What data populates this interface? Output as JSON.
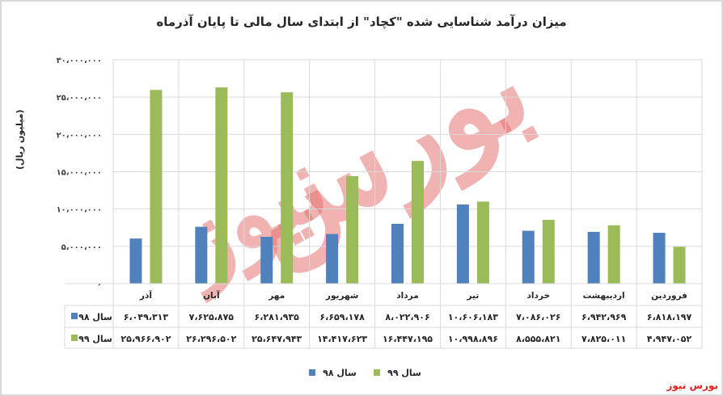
{
  "chart_data": {
    "type": "bar",
    "title": "میزان درآمد شناسایی شده \"کچاد\" از ابتدای سال مالی تا پایان آذرماه",
    "ylabel": "(میلیون ریال)",
    "xlabel": "",
    "ylim": [
      0,
      30000000
    ],
    "yticks": [
      "۰",
      "۵،۰۰۰،۰۰۰",
      "۱۰،۰۰۰،۰۰۰",
      "۱۵،۰۰۰،۰۰۰",
      "۲۰،۰۰۰،۰۰۰",
      "۲۵،۰۰۰،۰۰۰",
      "۳۰،۰۰۰،۰۰۰"
    ],
    "ytick_values": [
      0,
      5000000,
      10000000,
      15000000,
      20000000,
      25000000,
      30000000
    ],
    "categories": [
      "فروردین",
      "اردیبهشت",
      "خرداد",
      "تیر",
      "مرداد",
      "شهریور",
      "مهر",
      "آبان",
      "آذر"
    ],
    "grid": true,
    "legend_position": "bottom",
    "series": [
      {
        "name": "سال ۹۸",
        "color": "#4f81bd",
        "values": [
          6818197,
          6942969,
          7086026,
          10606183,
          8022906,
          6659178,
          6281935,
          7625875,
          6049313
        ],
        "labels": [
          "۶،۸۱۸،۱۹۷",
          "۶،۹۴۲،۹۶۹",
          "۷،۰۸۶،۰۲۶",
          "۱۰،۶۰۶،۱۸۳",
          "۸،۰۲۲،۹۰۶",
          "۶،۶۵۹،۱۷۸",
          "۶،۲۸۱،۹۳۵",
          "۷،۶۲۵،۸۷۵",
          "۶،۰۴۹،۳۱۳"
        ]
      },
      {
        "name": "سال ۹۹",
        "color": "#9bbb59",
        "values": [
          4947052,
          7825011,
          8555821,
          10998896,
          16447195,
          14417623,
          25647943,
          26296502,
          25966902
        ],
        "labels": [
          "۴،۹۴۷،۰۵۲",
          "۷،۸۲۵،۰۱۱",
          "۸،۵۵۵،۸۲۱",
          "۱۰،۹۹۸،۸۹۶",
          "۱۶،۴۴۷،۱۹۵",
          "۱۴،۴۱۷،۶۲۳",
          "۲۵،۶۴۷،۹۴۳",
          "۲۶،۲۹۶،۵۰۲",
          "۲۵،۹۶۶،۹۰۲"
        ]
      }
    ]
  },
  "watermark": {
    "corner_text": "بورس نیوز",
    "big_text_1": "بورس",
    "big_text_2": "نیوز"
  }
}
